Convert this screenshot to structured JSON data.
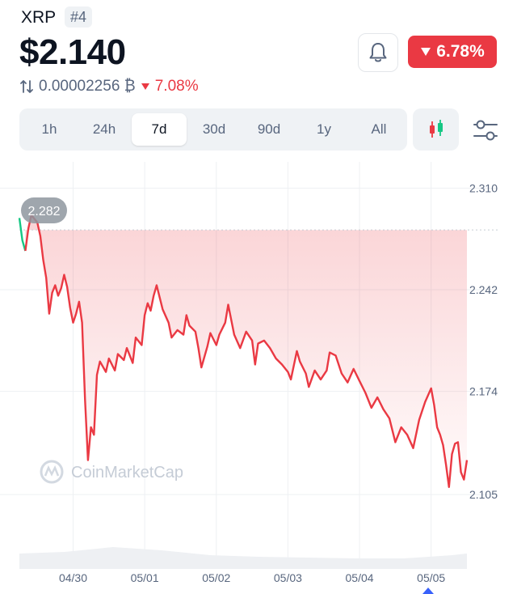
{
  "header": {
    "coin_symbol": "XRP",
    "rank": "#4",
    "price": "$2.140",
    "btc_price": "0.00002256 ₿",
    "btc_change": "7.08%",
    "change_24h": "6.78%"
  },
  "tabs": [
    {
      "label": "1h",
      "active": false
    },
    {
      "label": "24h",
      "active": false
    },
    {
      "label": "7d",
      "active": true
    },
    {
      "label": "30d",
      "active": false
    },
    {
      "label": "90d",
      "active": false
    },
    {
      "label": "1y",
      "active": false
    },
    {
      "label": "All",
      "active": false
    }
  ],
  "icons": {
    "bell": "bell-icon",
    "candlestick": "candlestick-icon",
    "filter": "sliders-icon",
    "swap": "swap-arrows-icon",
    "down_caret": "triangle-down-icon"
  },
  "colors": {
    "down": "#ea3943",
    "up": "#16c784",
    "text_primary": "#0d1421",
    "text_secondary": "#58667e"
  },
  "watermark": "CoinMarketCap",
  "chart_data": {
    "type": "line",
    "title": "",
    "xlabel": "",
    "ylabel": "",
    "x_ticks": [
      "04/30",
      "05/01",
      "05/02",
      "05/03",
      "05/04",
      "05/05"
    ],
    "y_ticks": [
      "2.310",
      "2.242",
      "2.174",
      "2.105"
    ],
    "ylim": [
      2.085,
      2.32
    ],
    "reference_label": "2.282",
    "reference_value": 2.282,
    "grid": true,
    "series": [
      {
        "color": "#ea3943",
        "points": [
          [
            "04/29 06:00",
            2.29
          ],
          [
            "04/29 07:00",
            2.275
          ],
          [
            "04/29 08:00",
            2.268
          ],
          [
            "04/29 09:00",
            2.283
          ],
          [
            "04/29 10:00",
            2.292
          ],
          [
            "04/29 12:00",
            2.287
          ],
          [
            "04/29 13:00",
            2.278
          ],
          [
            "04/29 14:00",
            2.262
          ],
          [
            "04/29 15:00",
            2.25
          ],
          [
            "04/29 16:00",
            2.226
          ],
          [
            "04/29 17:00",
            2.24
          ],
          [
            "04/29 18:00",
            2.245
          ],
          [
            "04/29 19:00",
            2.238
          ],
          [
            "04/29 20:00",
            2.243
          ],
          [
            "04/29 21:00",
            2.252
          ],
          [
            "04/29 22:00",
            2.244
          ],
          [
            "04/29 23:00",
            2.23
          ],
          [
            "04/30 00:00",
            2.22
          ],
          [
            "04/30 01:00",
            2.226
          ],
          [
            "04/30 02:00",
            2.234
          ],
          [
            "04/30 03:00",
            2.22
          ],
          [
            "04/30 04:00",
            2.168
          ],
          [
            "04/30 05:00",
            2.128
          ],
          [
            "04/30 06:00",
            2.15
          ],
          [
            "04/30 07:00",
            2.145
          ],
          [
            "04/30 08:00",
            2.185
          ],
          [
            "04/30 09:00",
            2.194
          ],
          [
            "04/30 11:00",
            2.187
          ],
          [
            "04/30 12:00",
            2.196
          ],
          [
            "04/30 14:00",
            2.188
          ],
          [
            "04/30 15:00",
            2.199
          ],
          [
            "04/30 17:00",
            2.195
          ],
          [
            "04/30 18:00",
            2.203
          ],
          [
            "04/30 20:00",
            2.193
          ],
          [
            "04/30 21:00",
            2.21
          ],
          [
            "04/30 23:00",
            2.205
          ],
          [
            "05/01 00:00",
            2.225
          ],
          [
            "05/01 01:00",
            2.233
          ],
          [
            "05/01 02:00",
            2.228
          ],
          [
            "05/01 03:00",
            2.238
          ],
          [
            "05/01 04:00",
            2.245
          ],
          [
            "05/01 05:00",
            2.237
          ],
          [
            "05/01 06:00",
            2.229
          ],
          [
            "05/01 08:00",
            2.22
          ],
          [
            "05/01 09:00",
            2.21
          ],
          [
            "05/01 11:00",
            2.215
          ],
          [
            "05/01 13:00",
            2.212
          ],
          [
            "05/01 14:00",
            2.225
          ],
          [
            "05/01 15:00",
            2.218
          ],
          [
            "05/01 17:00",
            2.214
          ],
          [
            "05/01 18:00",
            2.203
          ],
          [
            "05/01 19:00",
            2.19
          ],
          [
            "05/01 21:00",
            2.204
          ],
          [
            "05/01 22:00",
            2.213
          ],
          [
            "05/02 00:00",
            2.205
          ],
          [
            "05/02 01:00",
            2.212
          ],
          [
            "05/02 03:00",
            2.22
          ],
          [
            "05/02 04:00",
            2.232
          ],
          [
            "05/02 05:00",
            2.222
          ],
          [
            "05/02 06:00",
            2.212
          ],
          [
            "05/02 08:00",
            2.203
          ],
          [
            "05/02 10:00",
            2.214
          ],
          [
            "05/02 12:00",
            2.208
          ],
          [
            "05/02 13:00",
            2.192
          ],
          [
            "05/02 14:00",
            2.206
          ],
          [
            "05/02 16:00",
            2.208
          ],
          [
            "05/02 18:00",
            2.203
          ],
          [
            "05/02 20:00",
            2.196
          ],
          [
            "05/02 22:00",
            2.192
          ],
          [
            "05/03 00:00",
            2.187
          ],
          [
            "05/03 01:00",
            2.182
          ],
          [
            "05/03 03:00",
            2.201
          ],
          [
            "05/03 04:00",
            2.194
          ],
          [
            "05/03 06:00",
            2.186
          ],
          [
            "05/03 07:00",
            2.177
          ],
          [
            "05/03 09:00",
            2.188
          ],
          [
            "05/03 11:00",
            2.182
          ],
          [
            "05/03 13:00",
            2.188
          ],
          [
            "05/03 14:00",
            2.2
          ],
          [
            "05/03 16:00",
            2.198
          ],
          [
            "05/03 18:00",
            2.186
          ],
          [
            "05/03 20:00",
            2.18
          ],
          [
            "05/03 22:00",
            2.189
          ],
          [
            "05/04 00:00",
            2.181
          ],
          [
            "05/04 02:00",
            2.173
          ],
          [
            "05/04 04:00",
            2.163
          ],
          [
            "05/04 06:00",
            2.17
          ],
          [
            "05/04 08:00",
            2.162
          ],
          [
            "05/04 10:00",
            2.156
          ],
          [
            "05/04 12:00",
            2.14
          ],
          [
            "05/04 14:00",
            2.15
          ],
          [
            "05/04 16:00",
            2.145
          ],
          [
            "05/04 18:00",
            2.136
          ],
          [
            "05/04 20:00",
            2.155
          ],
          [
            "05/04 22:00",
            2.167
          ],
          [
            "05/05 00:00",
            2.176
          ],
          [
            "05/05 01:00",
            2.165
          ],
          [
            "05/05 02:00",
            2.15
          ],
          [
            "05/05 03:00",
            2.145
          ],
          [
            "05/05 04:00",
            2.138
          ],
          [
            "05/05 05:00",
            2.125
          ],
          [
            "05/05 06:00",
            2.11
          ],
          [
            "05/05 07:00",
            2.132
          ],
          [
            "05/05 08:00",
            2.139
          ],
          [
            "05/05 09:00",
            2.14
          ],
          [
            "05/05 10:00",
            2.12
          ],
          [
            "05/05 11:00",
            2.115
          ],
          [
            "05/05 12:00",
            2.128
          ]
        ]
      }
    ]
  }
}
